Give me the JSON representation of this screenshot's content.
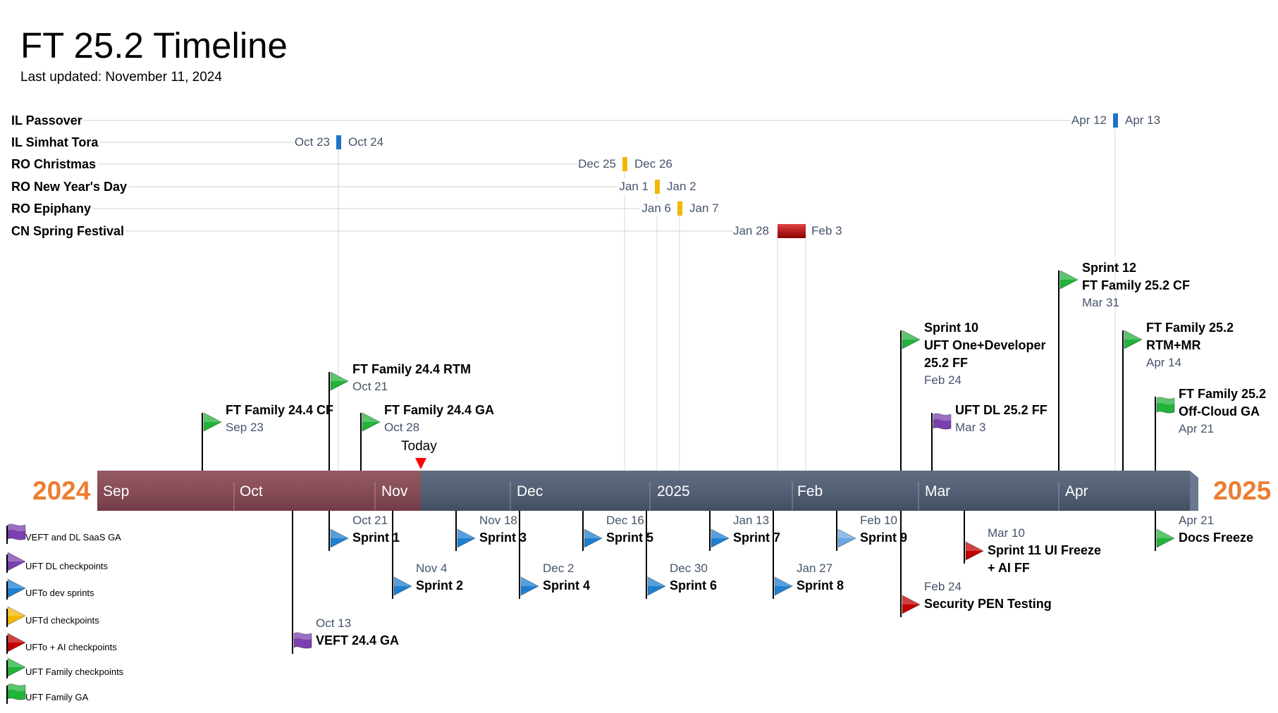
{
  "title": "FT 25.2 Timeline",
  "subtitle": "Last updated: November 11, 2024",
  "today_label": "Today",
  "years": {
    "start": "2024",
    "end": "2025"
  },
  "colors": {
    "past_bar": "#874652",
    "future_bar": "#4d5b73",
    "year_text": "#ed7d31",
    "date_text": "#44546a",
    "today_marker": "#ff0000",
    "flag_purple": "#7b3fb0",
    "flag_blue": "#1f7fd0",
    "flag_yellow": "#f5b800",
    "flag_red": "#c00000",
    "flag_green": "#22b33a",
    "holiday_blue": "#1f72c4",
    "holiday_yellow": "#f2b705",
    "holiday_red": "#c00000"
  },
  "months": [
    "Sep",
    "Oct",
    "Nov",
    "Dec",
    "2025",
    "Feb",
    "Mar",
    "Apr"
  ],
  "holidays": [
    {
      "name": "IL Passover",
      "start": "Apr 12",
      "end": "Apr 13",
      "color": "holiday_blue"
    },
    {
      "name": "IL Simhat Tora",
      "start": "Oct 23",
      "end": "Oct 24",
      "color": "holiday_blue"
    },
    {
      "name": "RO Christmas",
      "start": "Dec 25",
      "end": "Dec 26",
      "color": "holiday_yellow"
    },
    {
      "name": "RO New Year's Day",
      "start": "Jan 1",
      "end": "Jan 2",
      "color": "holiday_yellow"
    },
    {
      "name": "RO Epiphany",
      "start": "Jan 6",
      "end": "Jan 7",
      "color": "holiday_yellow"
    },
    {
      "name": "CN Spring Festival",
      "start": "Jan 28",
      "end": "Feb 3",
      "color": "holiday_red"
    }
  ],
  "events_above": [
    {
      "lines": [
        "FT Family 24.4 CF"
      ],
      "date": "Sep 23",
      "icon": "green-flag-icon"
    },
    {
      "lines": [
        "FT Family 24.4 RTM"
      ],
      "date": "Oct 21",
      "icon": "green-flag-icon"
    },
    {
      "lines": [
        "FT Family 24.4 GA"
      ],
      "date": "Oct 28",
      "icon": "green-flag-icon"
    },
    {
      "lines": [
        "Sprint 10",
        "UFT One+Developer",
        "25.2 FF"
      ],
      "date": "Feb 24",
      "icon": "green-flag-icon"
    },
    {
      "lines": [
        "UFT DL 25.2 FF"
      ],
      "date": "Mar 3",
      "icon": "purple-wave-flag-icon"
    },
    {
      "lines": [
        "Sprint 12",
        "FT Family 25.2 CF"
      ],
      "date": "Mar 31",
      "icon": "green-flag-icon"
    },
    {
      "lines": [
        "FT Family 25.2",
        "RTM+MR"
      ],
      "date": "Apr 14",
      "icon": "green-flag-icon"
    },
    {
      "lines": [
        "FT Family 25.2",
        "Off-Cloud GA"
      ],
      "date": "Apr 21",
      "icon": "green-wave-flag-icon"
    }
  ],
  "events_below": [
    {
      "lines": [
        "VEFT 24.4 GA"
      ],
      "date": "Oct 13",
      "icon": "purple-wave-flag-icon"
    },
    {
      "lines": [
        "Sprint 1"
      ],
      "date": "Oct 21",
      "icon": "blue-flag-icon"
    },
    {
      "lines": [
        "Sprint 2"
      ],
      "date": "Nov 4",
      "icon": "blue-flag-icon"
    },
    {
      "lines": [
        "Sprint 3"
      ],
      "date": "Nov 18",
      "icon": "blue-flag-icon"
    },
    {
      "lines": [
        "Sprint 4"
      ],
      "date": "Dec 2",
      "icon": "blue-flag-icon"
    },
    {
      "lines": [
        "Sprint 5"
      ],
      "date": "Dec 16",
      "icon": "blue-flag-icon"
    },
    {
      "lines": [
        "Sprint 6"
      ],
      "date": "Dec 30",
      "icon": "blue-flag-icon"
    },
    {
      "lines": [
        "Sprint 7"
      ],
      "date": "Jan 13",
      "icon": "blue-flag-icon"
    },
    {
      "lines": [
        "Sprint 8"
      ],
      "date": "Jan 27",
      "icon": "blue-flag-icon"
    },
    {
      "lines": [
        "Sprint 9"
      ],
      "date": "Feb 10",
      "icon": "light-blue-flag-icon"
    },
    {
      "lines": [
        "Security PEN Testing"
      ],
      "date": "Feb 24",
      "icon": "red-flag-icon"
    },
    {
      "lines": [
        "Sprint 11 UI Freeze",
        "+ AI FF"
      ],
      "date": "Mar 10",
      "icon": "red-flag-icon"
    },
    {
      "lines": [
        "Docs Freeze"
      ],
      "date": "Apr 21",
      "icon": "green-flag-icon"
    }
  ],
  "legend": [
    {
      "label": "VEFT and DL SaaS GA",
      "icon": "purple-wave-flag-icon"
    },
    {
      "label": "UFT DL checkpoints",
      "icon": "purple-flag-icon"
    },
    {
      "label": "UFTo dev sprints",
      "icon": "blue-flag-icon"
    },
    {
      "label": "UFTd checkpoints",
      "icon": "yellow-flag-icon"
    },
    {
      "label": "UFTo + AI checkpoints",
      "icon": "red-flag-icon"
    },
    {
      "label": "UFT Family checkpoints",
      "icon": "green-flag-icon"
    },
    {
      "label": "UFT Family GA",
      "icon": "green-wave-flag-icon"
    }
  ]
}
